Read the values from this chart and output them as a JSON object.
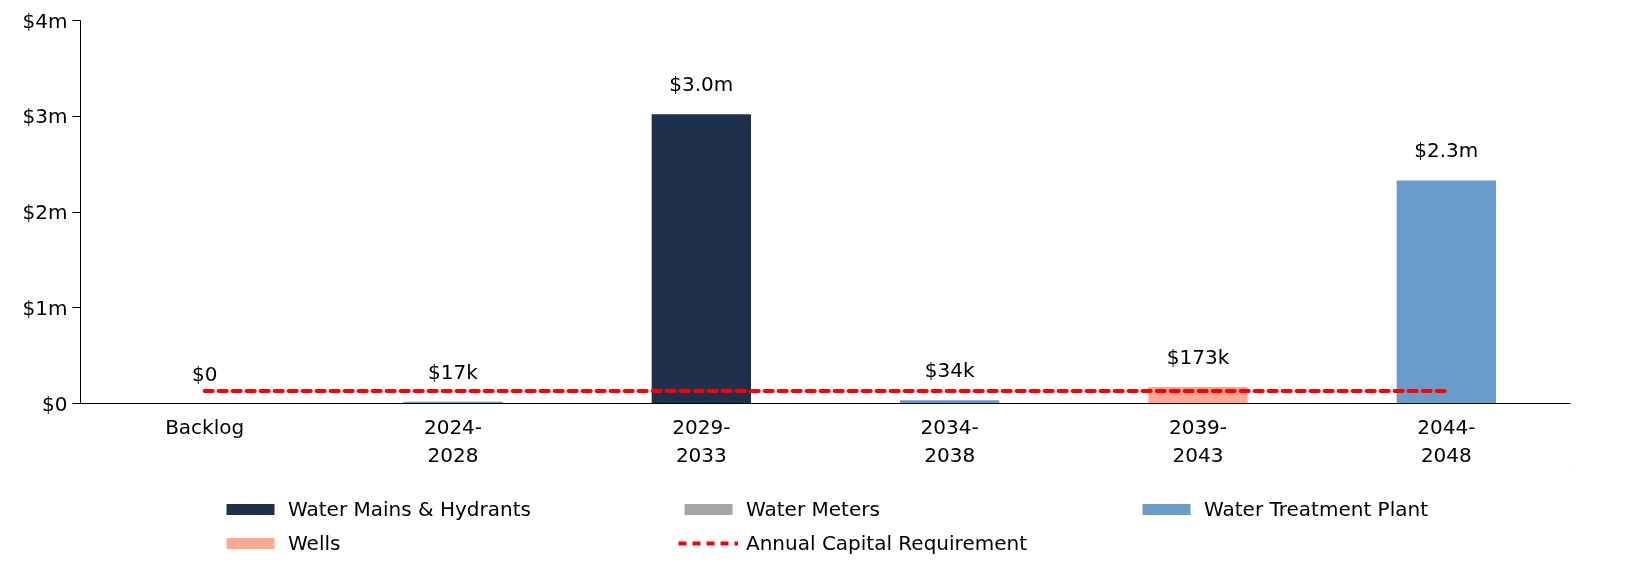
{
  "chart_data": {
    "type": "bar",
    "stacked": true,
    "categories": [
      "Backlog",
      "2024-\n2028",
      "2029-\n2033",
      "2034-\n2038",
      "2039-\n2043",
      "2044-\n2048"
    ],
    "series": [
      {
        "name": "Water Mains & Hydrants",
        "color": "#1f304d",
        "values": [
          0,
          0,
          3.02,
          0,
          0,
          0
        ]
      },
      {
        "name": "Water Meters",
        "color": "#a6a6a6",
        "values": [
          0,
          0,
          0,
          0,
          0,
          0
        ]
      },
      {
        "name": "Water Treatment Plant",
        "color": "#6a9bcb",
        "values": [
          0,
          0.017,
          0,
          0.034,
          0,
          2.33
        ]
      },
      {
        "name": "Wells",
        "color": "#ffa78f",
        "values": [
          0,
          0,
          0,
          0,
          0.173,
          0
        ]
      },
      {
        "name": "Annual Capital Requirement",
        "type": "line",
        "color": "#ff0000",
        "line_style": "dashed",
        "values": [
          0.13,
          0.13,
          0.13,
          0.13,
          0.13,
          0.13
        ]
      }
    ],
    "totals": [
      "$0",
      "$17k",
      "$3.0m",
      "$34k",
      "$173k",
      "$2.3m"
    ],
    "ylim": [
      0,
      4
    ],
    "yticks": [
      {
        "value": 0,
        "label": "$0"
      },
      {
        "value": 1,
        "label": "$1m"
      },
      {
        "value": 2,
        "label": "$2m"
      },
      {
        "value": 3,
        "label": "$3m"
      },
      {
        "value": 4,
        "label": "$4m"
      }
    ],
    "grid": false,
    "legend": "bottom"
  }
}
